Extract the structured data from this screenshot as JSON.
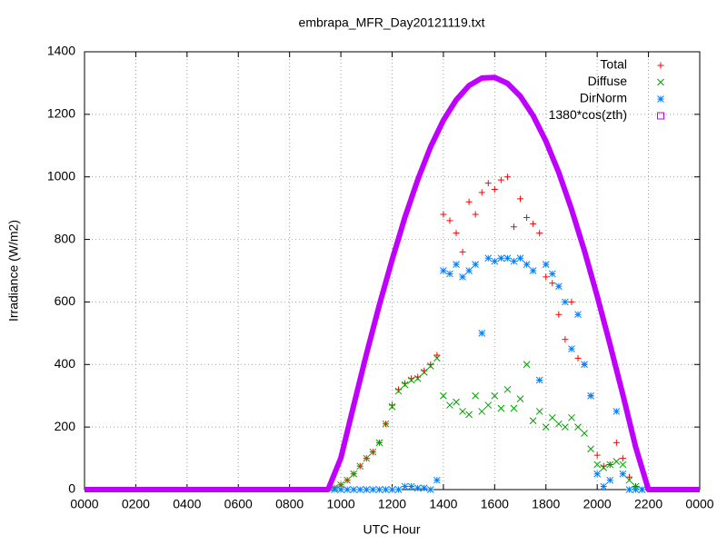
{
  "chart_data": {
    "type": "scatter",
    "title": "embrapa_MFR_Day20121119.txt",
    "xlabel": "UTC Hour",
    "ylabel": "Irradiance (W/m2)",
    "xlim": [
      0,
      24
    ],
    "ylim": [
      0,
      1400
    ],
    "xticks": [
      {
        "value": 0,
        "label": "0000"
      },
      {
        "value": 2,
        "label": "0200"
      },
      {
        "value": 4,
        "label": "0400"
      },
      {
        "value": 6,
        "label": "0600"
      },
      {
        "value": 8,
        "label": "0800"
      },
      {
        "value": 10,
        "label": "1000"
      },
      {
        "value": 12,
        "label": "1200"
      },
      {
        "value": 14,
        "label": "1400"
      },
      {
        "value": 16,
        "label": "1600"
      },
      {
        "value": 18,
        "label": "1800"
      },
      {
        "value": 20,
        "label": "2000"
      },
      {
        "value": 22,
        "label": "2200"
      },
      {
        "value": 24,
        "label": "0000"
      }
    ],
    "yticks": [
      0,
      200,
      400,
      600,
      800,
      1000,
      1200,
      1400
    ],
    "grid": true,
    "legend": "top-right",
    "series": [
      {
        "name": "Total",
        "color": "#ff0000",
        "marker": "plus",
        "x": [
          9.75,
          10,
          10.25,
          10.5,
          10.75,
          11,
          11.25,
          11.5,
          11.75,
          12,
          12.25,
          12.5,
          12.75,
          13,
          13.25,
          13.5,
          13.75,
          14,
          14.25,
          14.5,
          14.75,
          15,
          15.25,
          15.5,
          15.75,
          16,
          16.25,
          16.5,
          16.75,
          17,
          17.25,
          17.5,
          17.75,
          18,
          18.25,
          18.5,
          18.75,
          19,
          19.25,
          19.5,
          19.75,
          20,
          20.25,
          20.5,
          20.75,
          21,
          21.25,
          21.5,
          21.75
        ],
        "values": [
          5,
          15,
          30,
          50,
          75,
          100,
          120,
          150,
          210,
          270,
          320,
          340,
          355,
          360,
          380,
          400,
          430,
          880,
          860,
          820,
          760,
          920,
          880,
          950,
          980,
          960,
          990,
          1000,
          840,
          930,
          870,
          850,
          820,
          680,
          660,
          560,
          480,
          600,
          420,
          400,
          300,
          110,
          75,
          80,
          150,
          100,
          40,
          10,
          0
        ]
      },
      {
        "name": "Diffuse",
        "color": "#00a000",
        "marker": "cross",
        "x": [
          9.75,
          10,
          10.25,
          10.5,
          10.75,
          11,
          11.25,
          11.5,
          11.75,
          12,
          12.25,
          12.5,
          12.75,
          13,
          13.25,
          13.5,
          13.75,
          14,
          14.25,
          14.5,
          14.75,
          15,
          15.25,
          15.5,
          15.75,
          16,
          16.25,
          16.5,
          16.75,
          17,
          17.25,
          17.5,
          17.75,
          18,
          18.25,
          18.5,
          18.75,
          19,
          19.25,
          19.5,
          19.75,
          20,
          20.25,
          20.5,
          20.75,
          21,
          21.25,
          21.5,
          21.75
        ],
        "values": [
          5,
          15,
          30,
          50,
          75,
          100,
          120,
          150,
          210,
          265,
          315,
          335,
          350,
          355,
          375,
          395,
          420,
          300,
          270,
          280,
          250,
          240,
          300,
          250,
          270,
          300,
          260,
          320,
          260,
          290,
          400,
          220,
          250,
          200,
          230,
          210,
          200,
          230,
          200,
          180,
          130,
          80,
          70,
          80,
          90,
          80,
          30,
          10,
          0
        ]
      },
      {
        "name": "DirNorm",
        "color": "#0080ff",
        "marker": "star",
        "x": [
          9.75,
          10,
          10.25,
          10.5,
          10.75,
          11,
          11.25,
          11.5,
          11.75,
          12,
          12.25,
          12.5,
          12.75,
          13,
          13.25,
          13.5,
          13.75,
          14,
          14.25,
          14.5,
          14.75,
          15,
          15.25,
          15.5,
          15.75,
          16,
          16.25,
          16.5,
          16.75,
          17,
          17.25,
          17.5,
          17.75,
          18,
          18.25,
          18.5,
          18.75,
          19,
          19.25,
          19.5,
          19.75,
          20,
          20.25,
          20.5,
          20.75,
          21,
          21.25,
          21.5,
          21.75
        ],
        "values": [
          0,
          0,
          0,
          0,
          0,
          0,
          0,
          0,
          0,
          0,
          0,
          10,
          10,
          5,
          5,
          0,
          30,
          700,
          690,
          720,
          680,
          700,
          720,
          500,
          740,
          730,
          740,
          740,
          730,
          740,
          720,
          700,
          350,
          720,
          690,
          650,
          600,
          450,
          560,
          400,
          300,
          50,
          10,
          30,
          250,
          50,
          0,
          0,
          0
        ]
      },
      {
        "name": "1380*cos(zth)",
        "color": "#c000ff",
        "marker": "square",
        "x": [
          0,
          0.5,
          1,
          1.5,
          2,
          2.5,
          3,
          3.5,
          4,
          4.5,
          5,
          5.5,
          6,
          6.5,
          7,
          7.5,
          8,
          8.5,
          9,
          9.5,
          10,
          10.5,
          11,
          11.5,
          12,
          12.5,
          13,
          13.5,
          14,
          14.5,
          15,
          15.5,
          16,
          16.5,
          17,
          17.5,
          18,
          18.5,
          19,
          19.5,
          20,
          20.5,
          21,
          21.5,
          22,
          22.5,
          23,
          23.5,
          24
        ],
        "values": [
          0,
          0,
          0,
          0,
          0,
          0,
          0,
          0,
          0,
          0,
          0,
          0,
          0,
          0,
          0,
          0,
          0,
          0,
          0,
          0,
          101,
          269,
          434,
          590,
          735,
          871,
          991,
          1096,
          1181,
          1246,
          1292,
          1316,
          1318,
          1299,
          1258,
          1196,
          1114,
          1014,
          896,
          764,
          619,
          464,
          304,
          136,
          0,
          0,
          0,
          0,
          0
        ]
      }
    ]
  }
}
